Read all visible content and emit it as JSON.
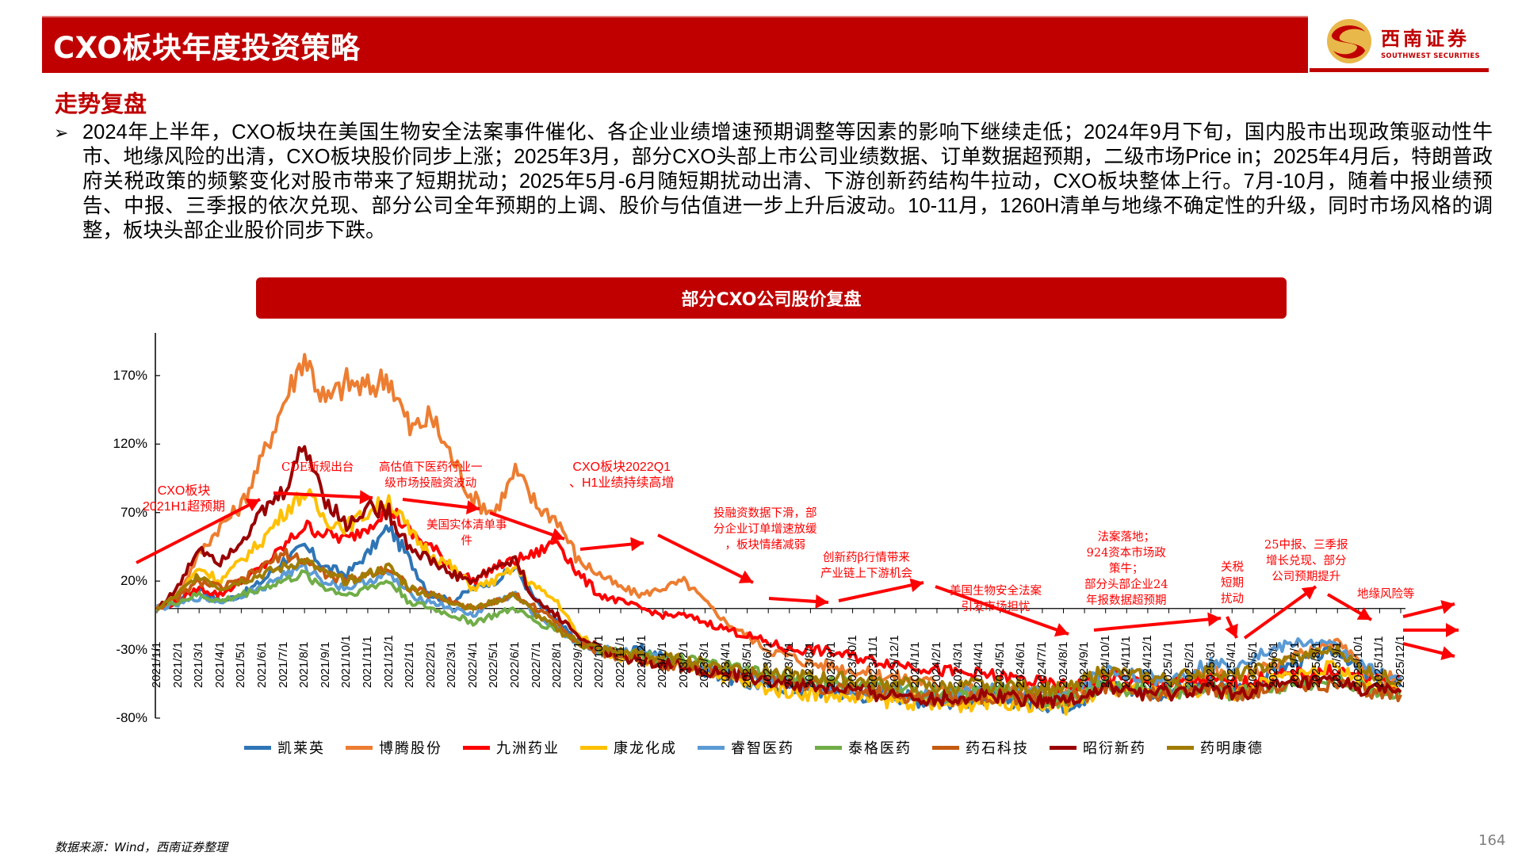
{
  "header": {
    "title": "CXO板块年度投资策略",
    "logo": {
      "cn": "西南证券",
      "en": "SOUTHWEST SECURITIES"
    }
  },
  "section": {
    "title": "走势复盘",
    "bullet_marker": "➢",
    "bullet_text": "2024年上半年，CXO板块在美国生物安全法案事件催化、各企业业绩增速预期调整等因素的影响下继续走低；2024年9月下旬，国内股市出现政策驱动性牛市、地缘风险的出清，CXO板块股价同步上涨；2025年3月，部分CXO头部上市公司业绩数据、订单数据超预期，二级市场Price in；2025年4月后，特朗普政府关税政策的频繁变化对股市带来了短期扰动；2025年5月-6月随短期扰动出清、下游创新药结构牛拉动，CXO板块整体上行。7月-10月，随着中报业绩预告、中报、三季报的依次兑现、部分公司全年预期的上调、股价与估值进一步上升后波动。10-11月，1260H清单与地缘不确定性的升级，同时市场风格的调整，板块头部企业股价同步下跌。"
  },
  "chart_banner": "部分CXO公司股价复盘",
  "footer": {
    "source": "数据来源：Wind，西南证券整理",
    "page": "164"
  },
  "colors": {
    "brand_red": "#c00000",
    "annotation_red": "#ff0000"
  },
  "chart_data": {
    "type": "line",
    "title": "部分CXO公司股价复盘",
    "xlabel": "",
    "ylabel": "",
    "ylim": [
      -80,
      200
    ],
    "yticks": [
      "170%",
      "120%",
      "70%",
      "20%",
      "-30%",
      "-80%"
    ],
    "ytick_values": [
      170,
      120,
      70,
      20,
      -30,
      -80
    ],
    "grid": false,
    "legend_position": "bottom",
    "x": [
      "2021/1/1",
      "2021/2/1",
      "2021/3/1",
      "2021/4/1",
      "2021/5/1",
      "2021/6/1",
      "2021/7/1",
      "2021/8/1",
      "2021/9/1",
      "2021/10/1",
      "2021/11/1",
      "2021/12/1",
      "2022/1/1",
      "2022/2/1",
      "2022/3/1",
      "2022/4/1",
      "2022/5/1",
      "2022/6/1",
      "2022/7/1",
      "2022/8/1",
      "2022/9/1",
      "2022/10/1",
      "2022/11/1",
      "2022/12/1",
      "2023/1/1",
      "2023/2/1",
      "2023/3/1",
      "2023/4/1",
      "2023/5/1",
      "2023/6/1",
      "2023/7/1",
      "2023/8/1",
      "2023/9/1",
      "2023/10/1",
      "2023/11/1",
      "2023/12/1",
      "2024/1/1",
      "2024/2/1",
      "2024/3/1",
      "2024/4/1",
      "2024/5/1",
      "2024/6/1",
      "2024/7/1",
      "2024/8/1",
      "2024/9/1",
      "2024/10/1",
      "2024/11/1",
      "2024/12/1",
      "2025/1/1",
      "2025/2/1",
      "2025/3/1",
      "2025/4/1",
      "2025/5/1",
      "2025/6/1",
      "2025/7/1",
      "2025/8/1",
      "2025/9/1",
      "2025/10/1",
      "2025/11/1",
      "2025/12/1"
    ],
    "series": [
      {
        "name": "凯莱英",
        "color": "#2e75b6",
        "values": [
          0,
          8,
          15,
          5,
          10,
          20,
          35,
          45,
          30,
          25,
          40,
          60,
          35,
          10,
          5,
          15,
          20,
          30,
          5,
          -10,
          -25,
          -30,
          -35,
          -30,
          -35,
          -40,
          -45,
          -50,
          -55,
          -55,
          -58,
          -60,
          -60,
          -62,
          -64,
          -63,
          -66,
          -68,
          -67,
          -66,
          -65,
          -68,
          -69,
          -70,
          -65,
          -55,
          -58,
          -60,
          -62,
          -58,
          -55,
          -60,
          -55,
          -45,
          -40,
          -35,
          -30,
          -45,
          -55,
          -57
        ]
      },
      {
        "name": "博腾股份",
        "color": "#ed7d31",
        "values": [
          0,
          10,
          40,
          60,
          75,
          110,
          150,
          185,
          150,
          165,
          160,
          170,
          130,
          140,
          110,
          80,
          70,
          100,
          75,
          65,
          35,
          25,
          15,
          10,
          15,
          20,
          5,
          -10,
          -20,
          -30,
          -35,
          -40,
          -42,
          -45,
          -48,
          -50,
          -52,
          -55,
          -58,
          -60,
          -62,
          -60,
          -63,
          -65,
          -58,
          -48,
          -50,
          -52,
          -55,
          -50,
          -45,
          -52,
          -48,
          -40,
          -35,
          -30,
          -25,
          -40,
          -50,
          -52
        ]
      },
      {
        "name": "九洲药业",
        "color": "#ff0000",
        "values": [
          0,
          5,
          15,
          10,
          20,
          30,
          45,
          60,
          55,
          50,
          60,
          75,
          55,
          45,
          30,
          20,
          30,
          35,
          40,
          50,
          25,
          10,
          5,
          0,
          -5,
          -5,
          -10,
          -15,
          -20,
          -25,
          -30,
          -30,
          -32,
          -35,
          -38,
          -40,
          -42,
          -45,
          -47,
          -48,
          -50,
          -52,
          -55,
          -57,
          -55,
          -50,
          -52,
          -55,
          -55,
          -53,
          -52,
          -55,
          -53,
          -50,
          -48,
          -47,
          -45,
          -50,
          -52,
          -54
        ]
      },
      {
        "name": "康龙化成",
        "color": "#ffc000",
        "values": [
          0,
          10,
          30,
          20,
          35,
          50,
          70,
          85,
          65,
          60,
          70,
          80,
          55,
          40,
          30,
          15,
          20,
          30,
          15,
          5,
          -20,
          -30,
          -35,
          -38,
          -40,
          -42,
          -45,
          -50,
          -55,
          -58,
          -60,
          -62,
          -63,
          -65,
          -66,
          -67,
          -68,
          -70,
          -70,
          -68,
          -67,
          -69,
          -70,
          -72,
          -66,
          -58,
          -60,
          -62,
          -64,
          -60,
          -57,
          -62,
          -58,
          -52,
          -48,
          -45,
          -42,
          -52,
          -58,
          -60
        ]
      },
      {
        "name": "睿智医药",
        "color": "#5b9bd5",
        "values": [
          0,
          3,
          8,
          5,
          10,
          15,
          25,
          30,
          20,
          15,
          20,
          25,
          10,
          5,
          0,
          -5,
          5,
          10,
          -5,
          -15,
          -25,
          -30,
          -32,
          -35,
          -38,
          -40,
          -42,
          -45,
          -48,
          -50,
          -52,
          -55,
          -57,
          -58,
          -60,
          -60,
          -62,
          -65,
          -63,
          -62,
          -60,
          -62,
          -64,
          -66,
          -55,
          -45,
          -48,
          -50,
          -52,
          -45,
          -40,
          -42,
          -35,
          -30,
          -25,
          -25,
          -28,
          -40,
          -48,
          -50
        ]
      },
      {
        "name": "泰格医药",
        "color": "#70ad47",
        "values": [
          0,
          5,
          10,
          5,
          10,
          15,
          20,
          25,
          15,
          10,
          15,
          20,
          5,
          0,
          -5,
          -10,
          -5,
          0,
          -10,
          -15,
          -25,
          -30,
          -32,
          -34,
          -36,
          -38,
          -40,
          -42,
          -45,
          -48,
          -50,
          -52,
          -53,
          -55,
          -57,
          -58,
          -60,
          -62,
          -63,
          -62,
          -60,
          -63,
          -65,
          -67,
          -62,
          -55,
          -58,
          -60,
          -62,
          -60,
          -58,
          -62,
          -60,
          -58,
          -55,
          -54,
          -53,
          -57,
          -60,
          -62
        ]
      },
      {
        "name": "药石科技",
        "color": "#c55a11",
        "values": [
          0,
          8,
          20,
          15,
          20,
          30,
          40,
          35,
          25,
          20,
          25,
          30,
          15,
          10,
          5,
          0,
          5,
          10,
          0,
          -10,
          -25,
          -32,
          -35,
          -37,
          -40,
          -42,
          -45,
          -48,
          -50,
          -52,
          -55,
          -57,
          -58,
          -60,
          -62,
          -63,
          -64,
          -66,
          -65,
          -64,
          -63,
          -65,
          -67,
          -68,
          -63,
          -58,
          -60,
          -62,
          -63,
          -60,
          -58,
          -62,
          -60,
          -57,
          -55,
          -55,
          -56,
          -60,
          -62,
          -63
        ]
      },
      {
        "name": "昭衍新药",
        "color": "#990000",
        "values": [
          0,
          15,
          45,
          35,
          50,
          70,
          85,
          120,
          80,
          60,
          75,
          70,
          45,
          35,
          25,
          20,
          30,
          35,
          5,
          -5,
          -20,
          -30,
          -35,
          -38,
          -40,
          -42,
          -45,
          -48,
          -50,
          -52,
          -55,
          -57,
          -58,
          -60,
          -62,
          -63,
          -64,
          -66,
          -65,
          -64,
          -63,
          -65,
          -66,
          -67,
          -63,
          -58,
          -60,
          -62,
          -63,
          -60,
          -58,
          -62,
          -60,
          -57,
          -55,
          -54,
          -53,
          -58,
          -60,
          -61
        ]
      },
      {
        "name": "药明康德",
        "color": "#a07c00",
        "values": [
          0,
          10,
          25,
          15,
          20,
          25,
          30,
          35,
          25,
          20,
          25,
          30,
          15,
          10,
          5,
          0,
          5,
          10,
          -5,
          -15,
          -25,
          -30,
          -32,
          -34,
          -36,
          -38,
          -40,
          -42,
          -44,
          -46,
          -48,
          -50,
          -51,
          -52,
          -54,
          -55,
          -56,
          -58,
          -57,
          -56,
          -55,
          -57,
          -58,
          -60,
          -52,
          -45,
          -48,
          -50,
          -52,
          -48,
          -45,
          -50,
          -46,
          -40,
          -36,
          -33,
          -30,
          -42,
          -50,
          -52
        ]
      }
    ],
    "annotations": [
      "CXO板块2021H1超预期",
      "CDE新规出台",
      "高估值下医药行业一级市场投融资波动",
      "美国实体清单事件",
      "CXO板块2022Q1、H1业绩持续高增",
      "投融资数据下滑，部分企业订单增速放缓，板块情绪减弱",
      "创新药β行情带来产业链上下游机会",
      "美国生物安全法案引发市场担忧",
      "法案落地；924资本市场政策牛；部分头部企业24年报数据超预期",
      "关税短期扰动",
      "25中报、三季报增长兑现、部分公司预期提升",
      "地缘风险等"
    ]
  }
}
